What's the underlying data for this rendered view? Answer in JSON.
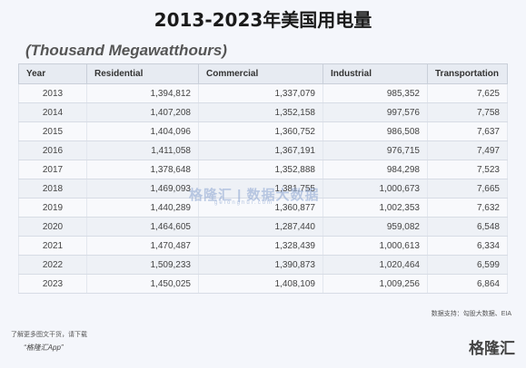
{
  "title": "2013-2023年美国用电量",
  "unit": "(Thousand Megawatthours)",
  "columns": [
    "Year",
    "Residential",
    "Commercial",
    "Industrial",
    "Transportation"
  ],
  "rows": [
    [
      "2013",
      "1,394,812",
      "1,337,079",
      "985,352",
      "7,625"
    ],
    [
      "2014",
      "1,407,208",
      "1,352,158",
      "997,576",
      "7,758"
    ],
    [
      "2015",
      "1,404,096",
      "1,360,752",
      "986,508",
      "7,637"
    ],
    [
      "2016",
      "1,411,058",
      "1,367,191",
      "976,715",
      "7,497"
    ],
    [
      "2017",
      "1,378,648",
      "1,352,888",
      "984,298",
      "7,523"
    ],
    [
      "2018",
      "1,469,093",
      "1,381,755",
      "1,000,673",
      "7,665"
    ],
    [
      "2019",
      "1,440,289",
      "1,360,877",
      "1,002,353",
      "7,632"
    ],
    [
      "2020",
      "1,464,605",
      "1,287,440",
      "959,082",
      "6,548"
    ],
    [
      "2021",
      "1,470,487",
      "1,328,439",
      "1,000,613",
      "6,334"
    ],
    [
      "2022",
      "1,509,233",
      "1,390,873",
      "1,020,464",
      "6,599"
    ],
    [
      "2023",
      "1,450,025",
      "1,408,109",
      "1,009,256",
      "6,864"
    ]
  ],
  "watermark": "格隆汇 | 数据大数据",
  "watermark_sub": "gelonghui.com",
  "source": "数据支持：勾股大数据、EIA",
  "footer_line1": "了解更多图文干货，请下载",
  "footer_line2": "“格隆汇App”",
  "brand": "格隆汇"
}
